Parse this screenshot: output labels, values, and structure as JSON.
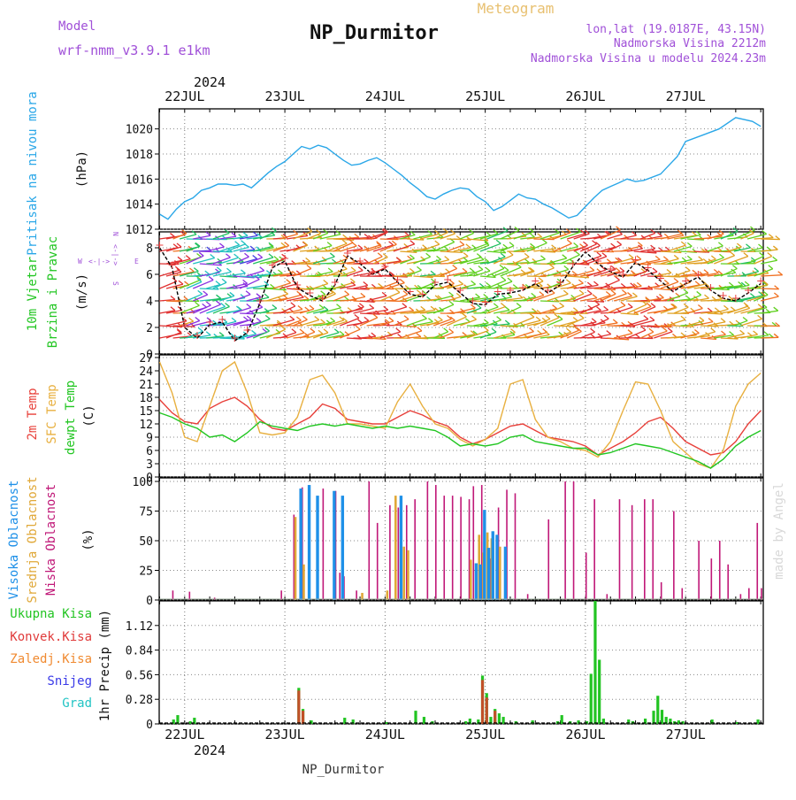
{
  "header": {
    "model_label": "Model",
    "model_name": "wrf-nmm_v3.9.1 e1km",
    "title": "Meteogram",
    "station": "NP_Durmitor",
    "coords": "lon,lat (19.0187E, 43.15N)",
    "altitude": "Nadmorska Visina 2212m",
    "model_altitude": "Nadmorska Visina u modelu 2024.23m",
    "signature": "made by Angel",
    "footer_station": "NP_Durmitor"
  },
  "colors": {
    "pressure": "#2aa7e8",
    "t2m": "#e8403a",
    "tsfc": "#e8b040",
    "dewpt": "#22c622",
    "cloud_high": "#1e90e8",
    "cloud_mid": "#e0a838",
    "cloud_low": "#c01878",
    "precip_total": "#22c422",
    "precip_conv": "#e03a3a",
    "precip_frz": "#f08a30",
    "precip_snow": "#3a3ae8",
    "precip_graupel": "#22c4c4",
    "header_purple": "#a050d8",
    "title_gold": "#e8c070"
  },
  "chart_data": [
    {
      "type": "line",
      "panel": "pressure",
      "ylabel": [
        "Pritisak na nivou mora",
        "(hPa)"
      ],
      "ylim": [
        1012,
        1021.6
      ],
      "yticks": [
        1012,
        1014,
        1016,
        1018,
        1020
      ],
      "x_axis_top": {
        "year": "2024",
        "ticks": [
          "22JUL",
          "23JUL",
          "24JUL",
          "25JUL",
          "26JUL",
          "27JUL"
        ]
      },
      "x_axis_bottom": {
        "year": "2024",
        "ticks": [
          "22JUL",
          "23JUL",
          "24JUL",
          "25JUL",
          "26JUL",
          "27JUL"
        ]
      },
      "x_hours": [
        -6,
        -4,
        -2,
        0,
        2,
        4,
        6,
        8,
        10,
        12,
        14,
        16,
        18,
        20,
        22,
        24,
        26,
        28,
        30,
        32,
        34,
        36,
        38,
        40,
        42,
        44,
        46,
        48,
        50,
        52,
        54,
        56,
        58,
        60,
        62,
        64,
        66,
        68,
        70,
        72,
        74,
        76,
        78,
        80,
        82,
        84,
        86,
        88,
        90,
        92,
        94,
        96,
        98,
        100,
        102,
        104,
        106,
        108,
        110,
        114,
        118,
        120,
        124,
        128,
        132,
        136,
        138
      ],
      "series": [
        {
          "name": "Pritisak na nivou mora",
          "values": [
            1013.2,
            1012.8,
            1013.6,
            1014.2,
            1014.5,
            1015.1,
            1015.3,
            1015.6,
            1015.6,
            1015.5,
            1015.6,
            1015.3,
            1015.9,
            1016.5,
            1017.0,
            1017.4,
            1018.0,
            1018.6,
            1018.4,
            1018.7,
            1018.5,
            1018.0,
            1017.5,
            1017.1,
            1017.2,
            1017.5,
            1017.7,
            1017.3,
            1016.8,
            1016.3,
            1015.7,
            1015.2,
            1014.6,
            1014.4,
            1014.8,
            1015.1,
            1015.3,
            1015.2,
            1014.6,
            1014.2,
            1013.5,
            1013.8,
            1014.3,
            1014.8,
            1014.5,
            1014.4,
            1014.0,
            1013.7,
            1013.3,
            1012.9,
            1013.1,
            1013.8,
            1014.5,
            1015.1,
            1015.4,
            1015.7,
            1016.0,
            1015.8,
            1015.9,
            1016.4,
            1017.8,
            1019.0,
            1019.5,
            1020.0,
            1020.9,
            1020.6,
            1020.2
          ]
        }
      ]
    },
    {
      "type": "line",
      "panel": "wind",
      "ylabel": [
        "10m Vjetar",
        "Brzina i Pravac",
        "(m/s)"
      ],
      "compass_labels": [
        "W",
        "<-|->",
        "E",
        "N",
        "<-|->",
        "S"
      ],
      "ylim": [
        0,
        9.2
      ],
      "yticks": [
        0,
        2,
        4,
        6,
        8
      ],
      "x_hours": [
        -6,
        -3,
        0,
        3,
        6,
        9,
        12,
        15,
        18,
        21,
        24,
        27,
        30,
        33,
        36,
        39,
        42,
        45,
        48,
        51,
        54,
        57,
        60,
        63,
        66,
        69,
        72,
        75,
        78,
        81,
        84,
        87,
        90,
        93,
        96,
        99,
        102,
        105,
        108,
        111,
        114,
        117,
        120,
        123,
        126,
        129,
        132,
        135,
        138
      ],
      "series": [
        {
          "name": "speed",
          "values": [
            8.0,
            6.5,
            2.0,
            1.2,
            2.2,
            2.4,
            1.0,
            1.6,
            3.8,
            6.5,
            7.0,
            5.0,
            4.4,
            4.0,
            5.2,
            7.4,
            6.8,
            6.0,
            6.4,
            5.4,
            4.5,
            4.3,
            5.2,
            5.4,
            4.6,
            3.8,
            3.7,
            4.5,
            4.6,
            4.8,
            5.3,
            4.6,
            5.2,
            6.6,
            7.7,
            6.8,
            6.2,
            5.8,
            6.9,
            6.3,
            5.5,
            4.7,
            5.3,
            5.8,
            4.8,
            4.2,
            4.0,
            4.6,
            5.3
          ]
        }
      ],
      "barb_colors": [
        "#4040e0",
        "#8a30e0",
        "#20c0c0",
        "#20c060",
        "#60d020",
        "#e0a020",
        "#f07020",
        "#e03030"
      ]
    },
    {
      "type": "line",
      "panel": "temperature",
      "ylabel": [
        "2m Temp",
        "SFC Temp",
        "dewpt Temp",
        "(C)"
      ],
      "ylim": [
        0,
        27.6
      ],
      "yticks": [
        0,
        3,
        6,
        9,
        12,
        15,
        18,
        21,
        24,
        27
      ],
      "x_hours": [
        -6,
        -3,
        0,
        3,
        6,
        9,
        12,
        15,
        18,
        21,
        24,
        27,
        30,
        33,
        36,
        39,
        42,
        45,
        48,
        51,
        54,
        57,
        60,
        63,
        66,
        69,
        72,
        75,
        78,
        81,
        84,
        87,
        90,
        93,
        96,
        99,
        102,
        105,
        108,
        111,
        114,
        117,
        120,
        123,
        126,
        129,
        132,
        135,
        138
      ],
      "series": [
        {
          "name": "2m Temp",
          "values": [
            17.5,
            14.5,
            12.5,
            12.0,
            15.5,
            17.0,
            18.0,
            16.0,
            13.0,
            11.0,
            10.5,
            12.0,
            13.5,
            16.5,
            15.5,
            13.0,
            12.5,
            12.0,
            12.0,
            13.5,
            15.0,
            14.0,
            12.5,
            11.5,
            9.0,
            7.5,
            8.5,
            10.0,
            11.5,
            12.0,
            10.5,
            9.0,
            8.5,
            8.0,
            7.0,
            5.0,
            6.5,
            8.0,
            10.0,
            12.5,
            13.5,
            11.0,
            8.0,
            6.5,
            5.0,
            5.5,
            8.0,
            12.0,
            15.0
          ]
        },
        {
          "name": "SFC Temp",
          "values": [
            26.0,
            19.0,
            9.0,
            8.0,
            16.0,
            24.0,
            26.0,
            19.0,
            10.0,
            9.5,
            10.0,
            13.5,
            22.0,
            23.0,
            19.0,
            12.0,
            12.0,
            11.5,
            11.0,
            17.0,
            21.0,
            16.0,
            12.0,
            11.0,
            8.5,
            7.0,
            8.5,
            11.0,
            21.0,
            22.0,
            13.0,
            9.0,
            8.0,
            6.5,
            6.0,
            4.5,
            8.0,
            15.0,
            21.5,
            21.0,
            15.0,
            8.0,
            5.5,
            3.0,
            2.0,
            6.0,
            16.0,
            21.0,
            23.5
          ]
        },
        {
          "name": "dewpt Temp",
          "values": [
            14.5,
            13.5,
            12.0,
            11.0,
            9.0,
            9.5,
            8.0,
            10.0,
            12.5,
            11.5,
            11.0,
            10.5,
            11.5,
            12.0,
            11.5,
            12.0,
            11.5,
            11.0,
            11.5,
            11.0,
            11.5,
            11.0,
            10.5,
            9.0,
            7.0,
            7.5,
            7.0,
            7.5,
            9.0,
            9.5,
            8.0,
            7.5,
            7.0,
            6.5,
            6.5,
            5.0,
            5.5,
            6.5,
            7.5,
            7.0,
            6.5,
            5.5,
            4.5,
            3.5,
            2.0,
            4.0,
            7.0,
            9.0,
            10.5
          ]
        }
      ]
    },
    {
      "type": "bar",
      "panel": "clouds",
      "ylabel": [
        "Visoka Oblacnost",
        "Srednja Oblacnost",
        "Niska Oblacnost",
        "(%)"
      ],
      "ylim": [
        0,
        103
      ],
      "yticks": [
        0,
        25,
        50,
        75,
        100
      ],
      "series": [
        {
          "name": "Niska Oblacnost",
          "points": [
            [
              -3,
              8
            ],
            [
              1,
              7
            ],
            [
              7,
              2
            ],
            [
              23,
              8
            ],
            [
              26,
              72
            ],
            [
              28,
              95
            ],
            [
              33,
              94
            ],
            [
              36,
              92
            ],
            [
              37,
              23
            ],
            [
              38,
              20
            ],
            [
              41,
              8
            ],
            [
              44,
              100
            ],
            [
              46,
              65
            ],
            [
              49,
              80
            ],
            [
              51,
              78
            ],
            [
              53,
              80
            ],
            [
              55,
              85
            ],
            [
              58,
              100
            ],
            [
              60,
              97
            ],
            [
              62,
              88
            ],
            [
              64,
              88
            ],
            [
              66,
              87
            ],
            [
              68,
              85
            ],
            [
              69,
              96
            ],
            [
              71,
              97
            ],
            [
              73,
              35
            ],
            [
              75,
              78
            ],
            [
              77,
              93
            ],
            [
              79,
              90
            ],
            [
              82,
              5
            ],
            [
              87,
              68
            ],
            [
              91,
              100
            ],
            [
              93,
              100
            ],
            [
              96,
              40
            ],
            [
              98,
              85
            ],
            [
              101,
              5
            ],
            [
              104,
              85
            ],
            [
              107,
              80
            ],
            [
              110,
              85
            ],
            [
              112,
              85
            ],
            [
              114,
              15
            ],
            [
              117,
              75
            ],
            [
              119,
              10
            ],
            [
              123,
              50
            ],
            [
              126,
              35
            ],
            [
              128,
              50
            ],
            [
              130,
              30
            ],
            [
              133,
              5
            ],
            [
              135,
              10
            ],
            [
              137,
              65
            ],
            [
              138,
              10
            ]
          ]
        },
        {
          "name": "Srednja Oblacnost",
          "points": [
            [
              26,
              70
            ],
            [
              28,
              30
            ],
            [
              42,
              6
            ],
            [
              48,
              8
            ],
            [
              50,
              88
            ],
            [
              52,
              45
            ],
            [
              53,
              42
            ],
            [
              68,
              34
            ],
            [
              70,
              55
            ],
            [
              71,
              40
            ],
            [
              72,
              57
            ],
            [
              73,
              52
            ],
            [
              75,
              45
            ]
          ]
        },
        {
          "name": "Visoka Oblacnost",
          "points": [
            [
              27,
              94
            ],
            [
              29,
              97
            ],
            [
              31,
              88
            ],
            [
              35,
              92
            ],
            [
              37,
              88
            ],
            [
              51,
              88
            ],
            [
              69,
              31
            ],
            [
              70,
              30
            ],
            [
              71,
              76
            ],
            [
              72,
              44
            ],
            [
              73,
              58
            ],
            [
              74,
              55
            ],
            [
              76,
              45
            ]
          ]
        }
      ],
      "mark_colors": {
        "Niska Oblacnost": "#c01878",
        "Srednja Oblacnost": "#e0a838",
        "Visoka Oblacnost": "#1e90e8",
        "purple": "#a050d8"
      }
    },
    {
      "type": "bar",
      "panel": "precipitation",
      "ylabel": [
        "1hr Precip (mm)"
      ],
      "legend": [
        "Ukupna Kisa",
        "Konvek.Kisa",
        "Zaledj.Kisa",
        "Snijeg",
        "Grad"
      ],
      "ylim": [
        0,
        1.4
      ],
      "yticks": [
        0,
        0.28,
        0.56,
        0.84,
        1.12
      ],
      "series": [
        {
          "name": "Ukupna Kisa",
          "points": [
            [
              -3,
              0.05
            ],
            [
              -2,
              0.1
            ],
            [
              1,
              0.03
            ],
            [
              2,
              0.07
            ],
            [
              27,
              0.41
            ],
            [
              28,
              0.17
            ],
            [
              30,
              0.04
            ],
            [
              38,
              0.07
            ],
            [
              40,
              0.05
            ],
            [
              48,
              0.02
            ],
            [
              55,
              0.15
            ],
            [
              57,
              0.08
            ],
            [
              59,
              0.03
            ],
            [
              67,
              0.03
            ],
            [
              68,
              0.06
            ],
            [
              70,
              0.05
            ],
            [
              71,
              0.55
            ],
            [
              72,
              0.35
            ],
            [
              73,
              0.08
            ],
            [
              74,
              0.17
            ],
            [
              75,
              0.12
            ],
            [
              76,
              0.08
            ],
            [
              79,
              0.03
            ],
            [
              83,
              0.04
            ],
            [
              89,
              0.03
            ],
            [
              90,
              0.1
            ],
            [
              92,
              0.03
            ],
            [
              94,
              0.04
            ],
            [
              96,
              0.03
            ],
            [
              97,
              0.57
            ],
            [
              98,
              1.4
            ],
            [
              99,
              0.73
            ],
            [
              100,
              0.06
            ],
            [
              106,
              0.05
            ],
            [
              107,
              0.03
            ],
            [
              110,
              0.06
            ],
            [
              112,
              0.15
            ],
            [
              113,
              0.32
            ],
            [
              114,
              0.16
            ],
            [
              115,
              0.08
            ],
            [
              116,
              0.06
            ],
            [
              117,
              0.03
            ],
            [
              118,
              0.04
            ],
            [
              119,
              0.03
            ],
            [
              126,
              0.05
            ],
            [
              132,
              0.02
            ],
            [
              137,
              0.05
            ]
          ]
        },
        {
          "name": "Konvek.Kisa",
          "points": [
            [
              27,
              0.38
            ],
            [
              28,
              0.15
            ],
            [
              71,
              0.5
            ],
            [
              72,
              0.3
            ],
            [
              74,
              0.15
            ]
          ]
        }
      ],
      "mark_colors": {
        "Ukupna Kisa": "#22c422",
        "Konvek.Kisa": "#c05028"
      }
    }
  ]
}
